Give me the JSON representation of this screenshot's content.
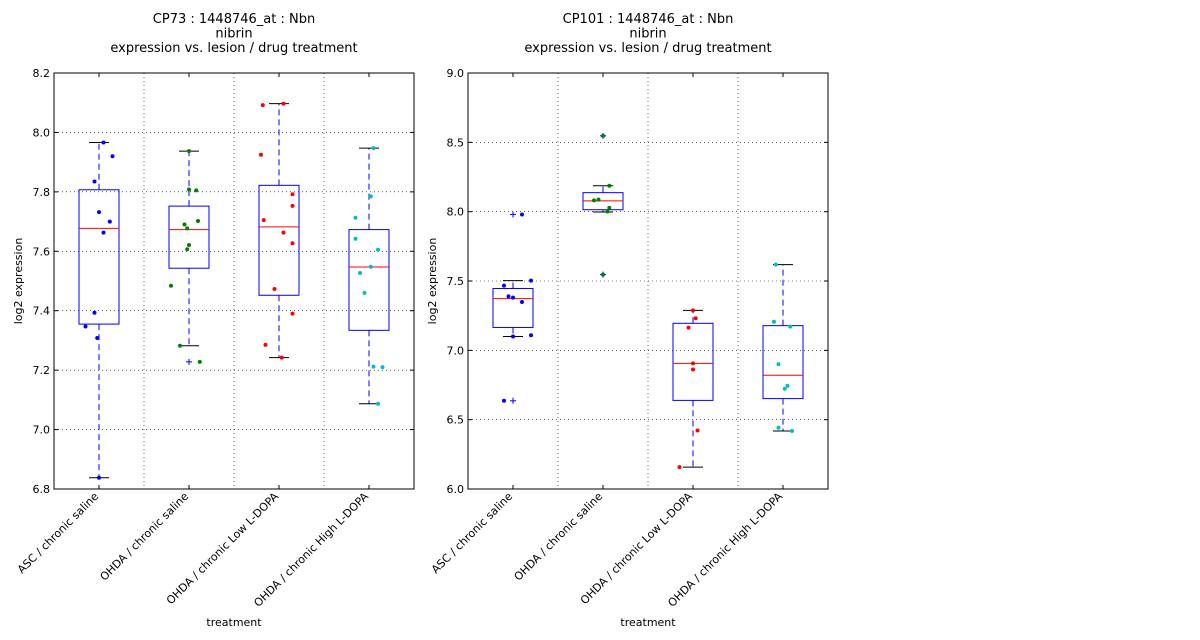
{
  "chart_data": [
    {
      "type": "boxplot",
      "title_lines": [
        "CP73 : 1448746_at : Nbn",
        "nibrin",
        "expression vs. lesion / drug treatment"
      ],
      "xlabel": "treatment",
      "ylabel": "log2 expression",
      "ylim": [
        6.8,
        8.2
      ],
      "yticks": [
        "6.8",
        "7.0",
        "7.2",
        "7.4",
        "7.6",
        "7.8",
        "8.0",
        "8.2"
      ],
      "grid": true,
      "categories": [
        "ASC / chronic saline",
        "OHDA / chronic saline",
        "OHDA / chronic Low L-DOPA",
        "OHDA / chronic High L-DOPA"
      ],
      "boxes": [
        {
          "q1": 7.355,
          "median": 7.677,
          "q3": 7.807,
          "whisker_low": 6.838,
          "whisker_high": 7.966,
          "outliers": []
        },
        {
          "q1": 7.543,
          "median": 7.673,
          "q3": 7.752,
          "whisker_low": 7.282,
          "whisker_high": 7.937,
          "outliers": [
            7.228
          ]
        },
        {
          "q1": 7.452,
          "median": 7.682,
          "q3": 7.822,
          "whisker_low": 7.242,
          "whisker_high": 8.097,
          "outliers": []
        },
        {
          "q1": 7.334,
          "median": 7.547,
          "q3": 7.673,
          "whisker_low": 7.087,
          "whisker_high": 7.947,
          "outliers": []
        }
      ],
      "points": [
        {
          "group": 0,
          "color": "#0000ff",
          "values": [
            7.966,
            7.92,
            7.835,
            7.732,
            7.7,
            7.663,
            7.393,
            7.347,
            7.308,
            6.838
          ],
          "offsets": [
            0.05,
            0.15,
            -0.05,
            0.0,
            0.12,
            0.05,
            -0.05,
            -0.15,
            -0.02,
            0.0
          ]
        },
        {
          "group": 1,
          "color": "#008000",
          "values": [
            7.937,
            7.808,
            7.805,
            7.702,
            7.69,
            7.677,
            7.621,
            7.607,
            7.484,
            7.282,
            7.228
          ],
          "offsets": [
            0.0,
            0.0,
            0.08,
            0.1,
            -0.05,
            -0.02,
            0.0,
            -0.02,
            -0.2,
            -0.1,
            0.12
          ]
        },
        {
          "group": 2,
          "color": "#ff0000",
          "values": [
            8.097,
            8.092,
            7.925,
            7.792,
            7.753,
            7.705,
            7.663,
            7.627,
            7.473,
            7.39,
            7.285,
            7.242
          ],
          "offsets": [
            0.05,
            -0.18,
            -0.2,
            0.15,
            0.15,
            -0.17,
            0.05,
            0.15,
            -0.05,
            0.15,
            -0.15,
            0.03
          ]
        },
        {
          "group": 3,
          "color": "#00bfbf",
          "values": [
            7.947,
            7.785,
            7.713,
            7.642,
            7.605,
            7.548,
            7.527,
            7.46,
            7.212,
            7.21,
            7.087
          ],
          "offsets": [
            0.05,
            0.02,
            -0.15,
            -0.15,
            0.1,
            0.02,
            -0.1,
            -0.05,
            0.05,
            0.15,
            0.1
          ]
        }
      ]
    },
    {
      "type": "boxplot",
      "title_lines": [
        "CP101 : 1448746_at : Nbn",
        "nibrin",
        "expression vs. lesion / drug treatment"
      ],
      "xlabel": "treatment",
      "ylabel": "log2 expression",
      "ylim": [
        6.0,
        9.0
      ],
      "yticks": [
        "6.0",
        "6.5",
        "7.0",
        "7.5",
        "8.0",
        "8.5",
        "9.0"
      ],
      "grid": true,
      "categories": [
        "ASC / chronic saline",
        "OHDA / chronic saline",
        "OHDA / chronic Low L-DOPA",
        "OHDA / chronic High L-DOPA"
      ],
      "boxes": [
        {
          "q1": 7.165,
          "median": 7.373,
          "q3": 7.446,
          "whisker_low": 7.1,
          "whisker_high": 7.503,
          "outliers": [
            7.98,
            6.636
          ]
        },
        {
          "q1": 8.014,
          "median": 8.078,
          "q3": 8.137,
          "whisker_low": 7.998,
          "whisker_high": 8.187,
          "outliers": [
            8.547,
            7.546
          ]
        },
        {
          "q1": 6.639,
          "median": 6.906,
          "q3": 7.195,
          "whisker_low": 6.158,
          "whisker_high": 7.288,
          "outliers": []
        },
        {
          "q1": 6.652,
          "median": 6.82,
          "q3": 7.178,
          "whisker_low": 6.418,
          "whisker_high": 7.618,
          "outliers": []
        }
      ],
      "points": [
        {
          "group": 0,
          "color": "#0000ff",
          "values": [
            7.98,
            7.503,
            7.467,
            7.389,
            7.38,
            7.349,
            7.109,
            7.1,
            6.636
          ],
          "offsets": [
            0.1,
            0.2,
            -0.1,
            -0.05,
            0.0,
            0.1,
            0.2,
            0.0,
            -0.1
          ]
        },
        {
          "group": 1,
          "color": "#008000",
          "values": [
            8.547,
            8.187,
            8.087,
            8.081,
            8.027,
            8.001,
            7.546
          ],
          "offsets": [
            0.0,
            0.07,
            -0.05,
            -0.1,
            0.07,
            0.05,
            0.0
          ]
        },
        {
          "group": 2,
          "color": "#ff0000",
          "values": [
            7.288,
            7.231,
            7.164,
            6.906,
            6.862,
            6.422,
            6.158
          ],
          "offsets": [
            0.0,
            0.03,
            -0.05,
            0.0,
            0.0,
            0.05,
            -0.15
          ]
        },
        {
          "group": 3,
          "color": "#00bfbf",
          "values": [
            7.618,
            7.206,
            7.171,
            6.9,
            6.745,
            6.723,
            6.442,
            6.418
          ],
          "offsets": [
            -0.08,
            -0.1,
            0.08,
            -0.05,
            0.05,
            0.02,
            -0.05,
            0.1
          ]
        }
      ]
    }
  ]
}
